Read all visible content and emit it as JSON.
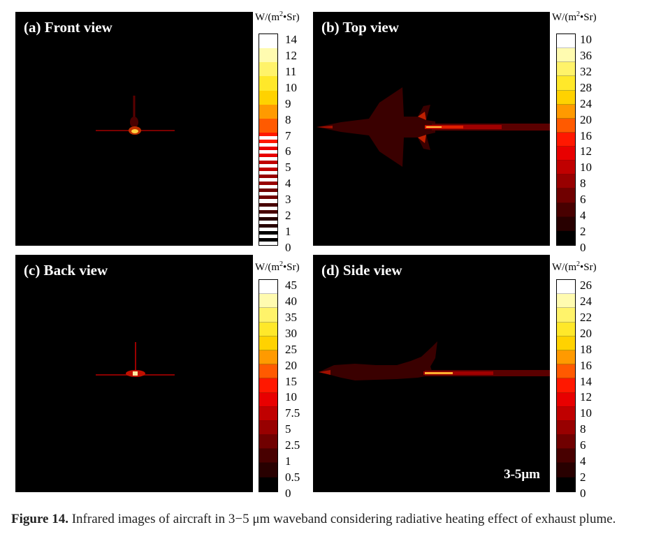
{
  "panels": {
    "a": {
      "title": "(a) Front view"
    },
    "b": {
      "title": "(b) Top view"
    },
    "c": {
      "title": "(c) Back view"
    },
    "d": {
      "title": "(d) Side view",
      "band": "3-5μm"
    }
  },
  "unit": {
    "prefix": "W/(m",
    "exp": "2",
    "suffix": "•Sr)"
  },
  "colorbars": {
    "a": {
      "ticks": [
        "14",
        "12",
        "11",
        "10",
        "9",
        "8",
        "7",
        "6",
        "5",
        "4",
        "3",
        "2",
        "1",
        "0"
      ]
    },
    "b": {
      "ticks": [
        "10",
        "36",
        "32",
        "28",
        "24",
        "20",
        "16",
        "12",
        "10",
        "8",
        "6",
        "4",
        "2",
        "0"
      ]
    },
    "c": {
      "ticks": [
        "45",
        "40",
        "35",
        "30",
        "25",
        "20",
        "15",
        "10",
        "7.5",
        "5",
        "2.5",
        "1",
        "0.5",
        "0"
      ]
    },
    "d": {
      "ticks": [
        "26",
        "24",
        "22",
        "20",
        "18",
        "16",
        "14",
        "12",
        "10",
        "8",
        "6",
        "4",
        "2",
        "0"
      ]
    }
  },
  "colors": {
    "palette_top_to_bottom": [
      "#ffffff",
      "#fffbb0",
      "#fff36a",
      "#ffe82a",
      "#ffd200",
      "#ff9a00",
      "#ff5a00",
      "#ff1800",
      "#e80000",
      "#c00000",
      "#980000",
      "#700000",
      "#480000",
      "#280000",
      "#000000"
    ]
  },
  "caption": {
    "label": "Figure 14.",
    "text": " Infrared images of aircraft in 3−5 μm waveband considering radiative heating effect of exhaust plume."
  }
}
